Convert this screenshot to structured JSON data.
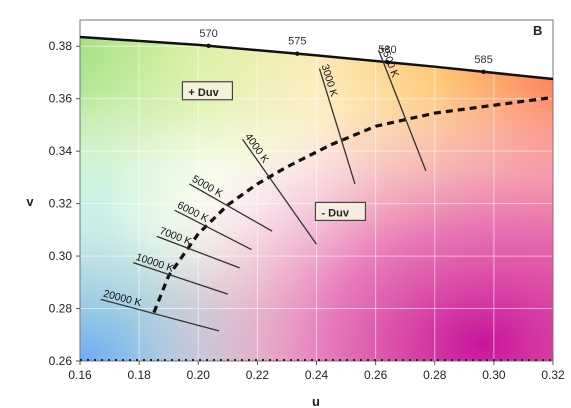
{
  "chart_data": {
    "type": "line",
    "panel_label": "B",
    "xlabel": "u",
    "ylabel": "v",
    "xlim": [
      0.16,
      0.32
    ],
    "ylim": [
      0.26,
      0.39
    ],
    "x_ticks": [
      "0.16",
      "0.18",
      "0.20",
      "0.22",
      "0.24",
      "0.26",
      "0.28",
      "0.30",
      "0.32"
    ],
    "y_ticks": [
      "0.26",
      "0.28",
      "0.30",
      "0.32",
      "0.34",
      "0.36",
      "0.38"
    ],
    "grid": true,
    "spectral_locus": {
      "points": [
        [
          0.16,
          0.3835
        ],
        [
          0.2,
          0.3805
        ],
        [
          0.24,
          0.3765
        ],
        [
          0.28,
          0.3722
        ],
        [
          0.32,
          0.3675
        ]
      ],
      "wavelength_labels": [
        {
          "text": "570",
          "u": 0.2035
        },
        {
          "text": "575",
          "u": 0.2335
        },
        {
          "text": "580",
          "u": 0.264
        },
        {
          "text": "585",
          "u": 0.2965
        }
      ]
    },
    "planckian_locus": {
      "points": [
        [
          0.185,
          0.2785
        ],
        [
          0.19,
          0.2925
        ],
        [
          0.195,
          0.3005
        ],
        [
          0.2,
          0.3085
        ],
        [
          0.21,
          0.3195
        ],
        [
          0.22,
          0.3275
        ],
        [
          0.23,
          0.334
        ],
        [
          0.245,
          0.3425
        ],
        [
          0.26,
          0.3495
        ],
        [
          0.28,
          0.3545
        ],
        [
          0.3,
          0.3575
        ],
        [
          0.32,
          0.3605
        ]
      ]
    },
    "isotemperature_lines": [
      {
        "label": "20000 K",
        "start": [
          0.167,
          0.2835
        ],
        "end": [
          0.207,
          0.2715
        ]
      },
      {
        "label": "10000 K",
        "start": [
          0.178,
          0.2975
        ],
        "end": [
          0.21,
          0.2855
        ]
      },
      {
        "label": "7000 K",
        "start": [
          0.186,
          0.3075
        ],
        "end": [
          0.214,
          0.2955
        ]
      },
      {
        "label": "6000 K",
        "start": [
          0.192,
          0.3175
        ],
        "end": [
          0.218,
          0.3025
        ]
      },
      {
        "label": "5000 K",
        "start": [
          0.197,
          0.3275
        ],
        "end": [
          0.225,
          0.3095
        ]
      },
      {
        "label": "4000 K",
        "start": [
          0.215,
          0.3445
        ],
        "end": [
          0.24,
          0.3045
        ]
      },
      {
        "label": "3000 K",
        "start": [
          0.241,
          0.3715
        ],
        "end": [
          0.253,
          0.3275
        ]
      },
      {
        "label": "2500 K",
        "start": [
          0.261,
          0.3785
        ],
        "end": [
          0.277,
          0.3325
        ]
      }
    ],
    "annotations": [
      {
        "text": "+ Duv",
        "u": 0.196,
        "v": 0.3615
      },
      {
        "text": "- Duv",
        "u": 0.241,
        "v": 0.3155
      }
    ]
  }
}
